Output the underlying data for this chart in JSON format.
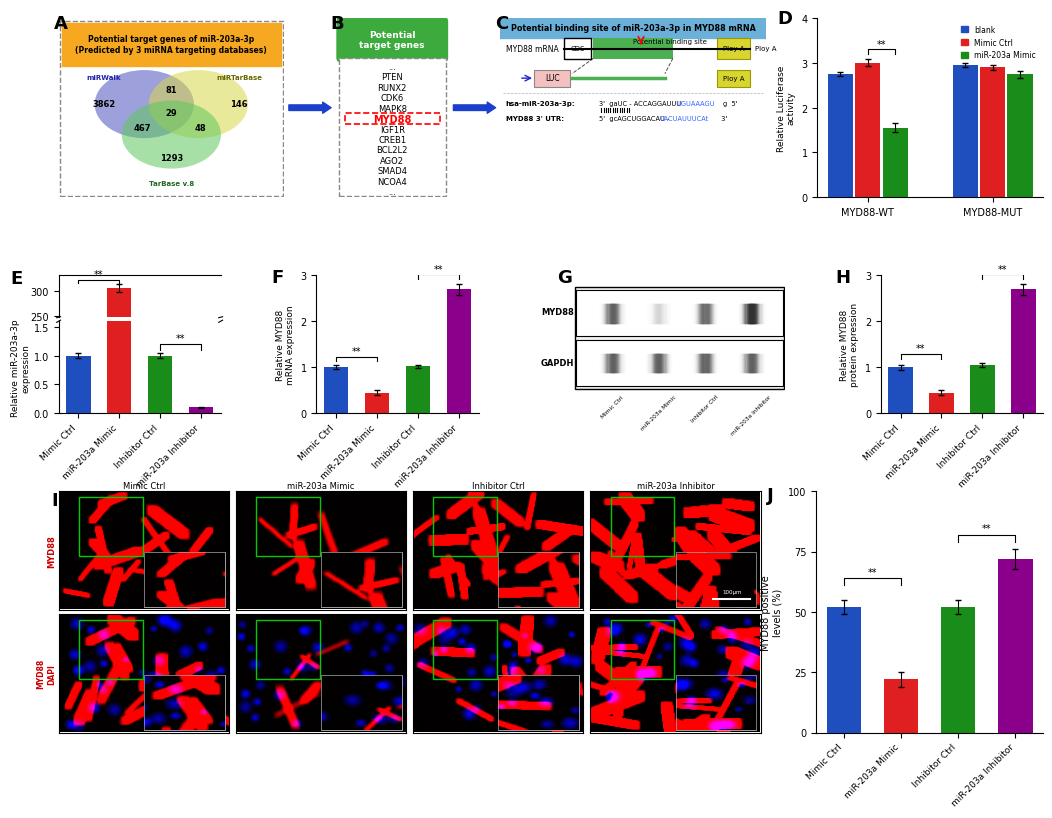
{
  "panel_A": {
    "title": "Potential target genes of miR-203a-3p\n(Predicted by 3 miRNA targeting databases)",
    "title_bg": "#F5A820",
    "numbers": [
      "3862",
      "81",
      "146",
      "467",
      "29",
      "48",
      "1293"
    ],
    "circle_colors": [
      "#6B6EC8",
      "#D8D84A",
      "#5EC85E"
    ],
    "circle_labels": [
      "miRWalk",
      "miRTarBase",
      "TarBase v.8"
    ]
  },
  "panel_B": {
    "genes": [
      "...",
      "PTEN",
      "RUNX2",
      "CDK6",
      "MAPK8",
      "MYD88",
      "IGF1R",
      "CREB1",
      "BCL2L2",
      "AGO2",
      "SMAD4",
      "NCOA4",
      "..."
    ],
    "highlight": "MYD88",
    "title": "Potential\ntarget genes",
    "title_bg": "#3DAA3D"
  },
  "panel_D": {
    "ylabel": "Relative Luciferase\nactivity",
    "ylim": [
      0,
      4
    ],
    "yticks": [
      0,
      1,
      2,
      3,
      4
    ],
    "groups": [
      "MYD88-WT",
      "MYD88-MUT"
    ],
    "series": [
      "blank",
      "Mimic Ctrl",
      "miR-203a Mimic"
    ],
    "colors": [
      "#1F4FBF",
      "#E02020",
      "#1A8C1A"
    ],
    "values": [
      [
        2.75,
        3.0,
        1.55
      ],
      [
        2.95,
        2.9,
        2.75
      ]
    ],
    "errors": [
      [
        0.05,
        0.08,
        0.1
      ],
      [
        0.05,
        0.06,
        0.08
      ]
    ]
  },
  "panel_E": {
    "ylabel": "Relative miR-203a-3p\nexpression",
    "ylim_lower": [
      0,
      1.6
    ],
    "ylim_upper": [
      248,
      330
    ],
    "yticks_lower": [
      0.0,
      0.5,
      1.0,
      1.5
    ],
    "yticks_upper": [
      250,
      300
    ],
    "categories": [
      "Mimic Ctrl",
      "miR-203a Mimic",
      "Inhibitor Ctrl",
      "miR-203a Inhibitor"
    ],
    "colors": [
      "#1F4FBF",
      "#E02020",
      "#1A8C1A",
      "#8B008B"
    ],
    "values": [
      1.0,
      305.0,
      1.0,
      0.1
    ],
    "errors": [
      0.04,
      8.0,
      0.04,
      0.015
    ]
  },
  "panel_F": {
    "ylabel": "Relative MYD88\nmRNA expression",
    "ylim": [
      0,
      3
    ],
    "yticks": [
      0,
      1,
      2,
      3
    ],
    "categories": [
      "Mimic Ctrl",
      "miR-203a Mimic",
      "Inhibitor Ctrl",
      "miR-203a Inhibitor"
    ],
    "colors": [
      "#1F4FBF",
      "#E02020",
      "#1A8C1A",
      "#8B008B"
    ],
    "values": [
      1.0,
      0.45,
      1.02,
      2.7
    ],
    "errors": [
      0.04,
      0.05,
      0.04,
      0.12
    ]
  },
  "panel_H": {
    "ylabel": "Relative MYD88\nprotein expression",
    "ylim": [
      0,
      3
    ],
    "yticks": [
      0,
      1,
      2,
      3
    ],
    "categories": [
      "Mimic Ctrl",
      "miR-203a Mimic",
      "Inhibitor Ctrl",
      "miR-203a Inhibitor"
    ],
    "colors": [
      "#1F4FBF",
      "#E02020",
      "#1A8C1A",
      "#8B008B"
    ],
    "values": [
      1.0,
      0.45,
      1.05,
      2.7
    ],
    "errors": [
      0.05,
      0.06,
      0.05,
      0.12
    ]
  },
  "panel_J": {
    "ylabel": "MYD88 positive\nlevels (%)",
    "ylim": [
      0,
      100
    ],
    "yticks": [
      0,
      25,
      50,
      75,
      100
    ],
    "categories": [
      "Mimic Ctrl",
      "miR-203a Mimic",
      "Inhibitor Ctrl",
      "miR-203a Inhibitor"
    ],
    "colors": [
      "#1F4FBF",
      "#E02020",
      "#1A8C1A",
      "#8B008B"
    ],
    "values": [
      52,
      22,
      52,
      72
    ],
    "errors": [
      3,
      3,
      3,
      4
    ]
  },
  "if_intensities_row1": [
    0.65,
    0.25,
    0.6,
    0.9
  ],
  "if_intensities_row2": [
    0.55,
    0.2,
    0.55,
    0.85
  ],
  "wb_myd88": [
    0.75,
    0.3,
    0.72,
    0.95
  ],
  "wb_gapdh": [
    0.75,
    0.75,
    0.75,
    0.75
  ],
  "arrow_color": "#1A3FCC",
  "label_fontsize": 13,
  "background_color": "#FFFFFF"
}
